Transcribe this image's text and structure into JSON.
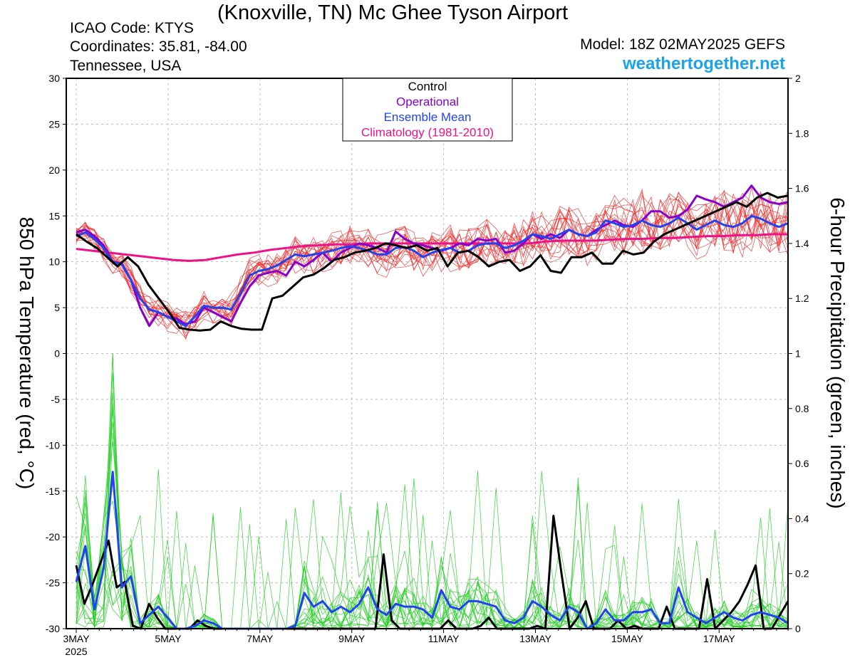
{
  "header": {
    "title": "(Knoxville, TN) Mc Ghee Tyson Airport",
    "icao": "ICAO Code: KTYS",
    "coordinates": "Coordinates: 35.81, -84.00",
    "region": "Tennessee, USA",
    "model": "Model: 18Z 02MAY2025 GEFS",
    "site": "weathertogether.net"
  },
  "colors": {
    "control": "#000000",
    "operational": "#8800cc",
    "ensemble_mean": "#2244ee",
    "climatology": "#ee1188",
    "member_temp": "#ee2222",
    "member_precip": "#22cc22"
  },
  "chart_data": {
    "type": "line",
    "ylabel": "850 hPa Temperature (red, °C)",
    "y2label": "6-hour Precipitation (green, inches)",
    "ylim": [
      -30,
      30
    ],
    "y2lim": [
      0,
      2
    ],
    "yticks": [
      "30",
      "25",
      "20",
      "15",
      "10",
      "5",
      "0",
      "-5",
      "-10",
      "-15",
      "-20",
      "-25",
      "-30"
    ],
    "y2ticks": [
      "2",
      "1.8",
      "1.6",
      "1.4",
      "1.2",
      "1",
      "0.8",
      "0.6",
      "0.4",
      "0.2",
      "0"
    ],
    "xlim": [
      0,
      62
    ],
    "xticks": [
      {
        "x": 0,
        "label": "3MAY",
        "sub": "2025"
      },
      {
        "x": 8,
        "label": "5MAY"
      },
      {
        "x": 16,
        "label": "7MAY"
      },
      {
        "x": 24,
        "label": "9MAY"
      },
      {
        "x": 32,
        "label": "11MAY"
      },
      {
        "x": 40,
        "label": "13MAY"
      },
      {
        "x": 48,
        "label": "15MAY"
      },
      {
        "x": 56,
        "label": "17MAY"
      }
    ],
    "x_unit": "6-hour steps from 3MAY 00Z",
    "grid": true,
    "legend": {
      "position": "top-center",
      "entries": [
        "Control",
        "Operational",
        "Ensemble Mean",
        "Climatology (1981-2010)"
      ]
    },
    "temperature_series": [
      {
        "name": "Control",
        "values": [
          13,
          12.2,
          11.5,
          10.5,
          9.5,
          10.5,
          9.5,
          7.5,
          6,
          4.5,
          2.8,
          2.6,
          2.5,
          2.6,
          3.5,
          3,
          2.7,
          2.6,
          2.6,
          6,
          6.3,
          7.3,
          8.3,
          8.6,
          9.3,
          10.2,
          10.5,
          11,
          11.2,
          11.5,
          12,
          11.8,
          11.5,
          11.8,
          11.2,
          11.5,
          9.5,
          11,
          11.2,
          10.5,
          9.5,
          10,
          10.2,
          9,
          9.5,
          10.7,
          9,
          8.8,
          10.5,
          10.5,
          11,
          9.8,
          9.8,
          11.2,
          10.8,
          11,
          12.2,
          13,
          13.5,
          14,
          14.5,
          15,
          15.5,
          16,
          16.5,
          16,
          17,
          17.5,
          17,
          17.2
        ],
        "color": "control"
      },
      {
        "name": "Operational",
        "values": [
          13.2,
          13.5,
          12.8,
          11.8,
          10,
          9.8,
          8,
          5,
          3,
          4.5,
          4,
          3.8,
          3.2,
          3.5,
          5,
          4.5,
          4,
          3.5,
          5.5,
          7.3,
          8.5,
          8.8,
          9,
          8.5,
          10,
          9.5,
          10.2,
          11,
          10,
          11,
          11.5,
          12,
          11.8,
          11.5,
          11,
          13.3,
          12.5,
          12,
          11.8,
          11.5,
          11.2,
          11.5,
          12,
          11.8,
          12.5,
          12.3,
          12.5,
          11,
          11.2,
          12,
          13,
          12.5,
          13,
          12.6,
          13.5,
          13,
          12.8,
          13.5,
          14,
          14.5,
          14,
          13.8,
          14.5,
          15.5,
          15.5,
          14.8,
          15,
          15.7,
          17.2,
          16.8,
          16.5,
          16,
          16.5,
          17,
          18.3,
          17,
          16.5,
          16.3,
          16.5
        ],
        "color": "operational"
      },
      {
        "name": "Ensemble Mean",
        "values": [
          12.8,
          13.2,
          12.5,
          11.5,
          10,
          9.7,
          8,
          6,
          4.8,
          4.5,
          4,
          3.5,
          3,
          4,
          5.2,
          5,
          5,
          4.8,
          6.5,
          8.5,
          9,
          9.2,
          9.6,
          10.2,
          10.8,
          10.6,
          10.8,
          11,
          11.2,
          11.5,
          11.7,
          11.5,
          11.2,
          10.8,
          10.8,
          11.5,
          11.6,
          11.2,
          10.5,
          11,
          11.3,
          11.5,
          11,
          11.2,
          11.8,
          12,
          12,
          11.5,
          11.8,
          12.3,
          13,
          12.8,
          12.5,
          13,
          13.5,
          13,
          12.8,
          13.2,
          14.5,
          14.2,
          13.8,
          14,
          14.5,
          14,
          13.8,
          14.2,
          14.8,
          14.2,
          13.5,
          14,
          14.5,
          14,
          13.8,
          14.2,
          15,
          14.7,
          14.2,
          13.8,
          14.2
        ],
        "color": "ensemble_mean"
      },
      {
        "name": "Climatology (1981-2010)",
        "values": [
          11.4,
          11.2,
          11,
          10.8,
          10.6,
          10.4,
          10.2,
          10.1,
          10.2,
          10.5,
          10.8,
          11,
          11.3,
          11.5,
          11.7,
          11.8,
          11.9,
          11.9,
          12,
          12,
          12,
          12,
          12,
          12,
          12,
          12,
          12,
          12,
          12,
          12.2,
          12.3,
          12.3,
          12.3,
          12.4,
          12.5,
          12.5,
          12.6,
          12.6,
          12.7,
          12.8,
          12.8,
          12.9,
          12.9,
          13,
          13
        ],
        "color": "climatology"
      }
    ],
    "precipitation_series": [
      {
        "name": "Control",
        "values": [
          0.23,
          0.09,
          0.16,
          0.24,
          0.32,
          0.15,
          0.17,
          0.01,
          0,
          0.09,
          0.04,
          0,
          0,
          0,
          0,
          0.03,
          0.01,
          0,
          0,
          0,
          0,
          0,
          0,
          0,
          0,
          0,
          0,
          0,
          0,
          0,
          0,
          0,
          0,
          0,
          0,
          0,
          0,
          0,
          0.27,
          0.03,
          0,
          0,
          0,
          0,
          0,
          0,
          0.03,
          0,
          0,
          0,
          0.01,
          0.04,
          0,
          0,
          0,
          0,
          0,
          0.01,
          0,
          0.41,
          0.2,
          0,
          0.04,
          0.1,
          0,
          0,
          0,
          0.03,
          0,
          0.01,
          0,
          0,
          0,
          0.08,
          0,
          0,
          0,
          0,
          0.18,
          0,
          0.03,
          0.06,
          0.1,
          0.16,
          0.23,
          0,
          0,
          0.05,
          0.1
        ],
        "color": "control"
      },
      {
        "name": "Ensemble Mean",
        "values": [
          0.17,
          0.3,
          0.07,
          0.22,
          0.57,
          0.15,
          0.19,
          0.02,
          0.05,
          0.08,
          0.04,
          0,
          0,
          0.01,
          0.03,
          0.02,
          0,
          0,
          0,
          0,
          0,
          0,
          0,
          0,
          0.01,
          0.13,
          0.08,
          0.1,
          0.06,
          0.08,
          0.06,
          0.09,
          0.15,
          0.07,
          0.05,
          0.09,
          0.08,
          0.08,
          0.07,
          0.04,
          0.14,
          0.08,
          0.07,
          0.1,
          0.1,
          0.09,
          0.08,
          0.03,
          0.02,
          0.04,
          0.1,
          0.08,
          0.05,
          0.03,
          0.08,
          0.06,
          0,
          0.02,
          0.07,
          0.03,
          0.03,
          0.06,
          0.06,
          0.07,
          0.02,
          0.02,
          0.15,
          0.06,
          0.04,
          0.02,
          0.04,
          0.06,
          0.04,
          0.03,
          0.05,
          0.06,
          0.05,
          0.04,
          0.02
        ],
        "color": "ensemble_mean"
      }
    ]
  }
}
